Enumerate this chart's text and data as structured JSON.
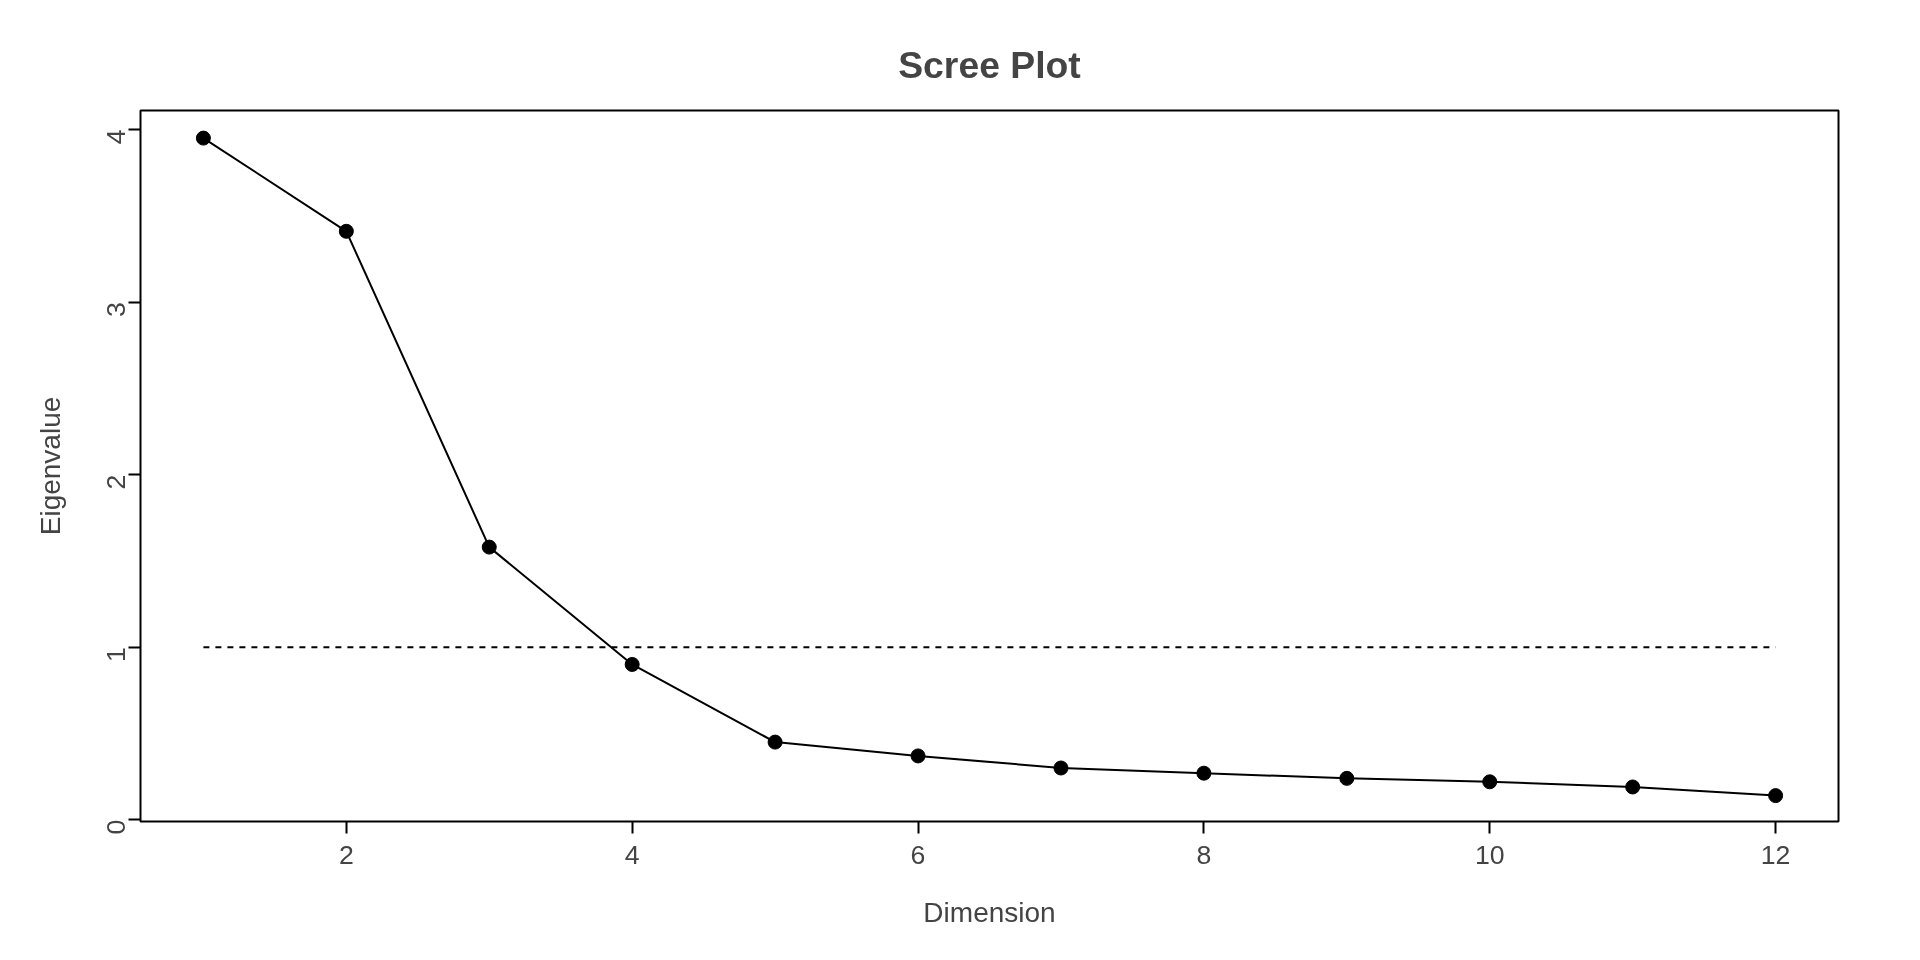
{
  "chart_data": {
    "type": "line",
    "title": "Scree Plot",
    "xlabel": "Dimension",
    "ylabel": "Eigenvalue",
    "x": [
      1,
      2,
      3,
      4,
      5,
      6,
      7,
      8,
      9,
      10,
      11,
      12
    ],
    "series": [
      {
        "color": "#000000",
        "values": [
          3.95,
          3.41,
          1.58,
          0.9,
          0.45,
          0.37,
          0.3,
          0.27,
          0.24,
          0.22,
          0.19,
          0.14
        ]
      }
    ],
    "xlim": [
      0.56,
      12.44
    ],
    "xticks": [
      2,
      4,
      6,
      8,
      10,
      12
    ],
    "ylim": [
      -0.01,
      4.11
    ],
    "yticks": [
      0,
      1,
      2,
      3,
      4
    ],
    "ref_lines": [
      {
        "axis": "y",
        "value": 1,
        "color": "#000000",
        "line_style": "dashed"
      }
    ],
    "marker": "circle",
    "line_style": "solid",
    "grid": false
  }
}
